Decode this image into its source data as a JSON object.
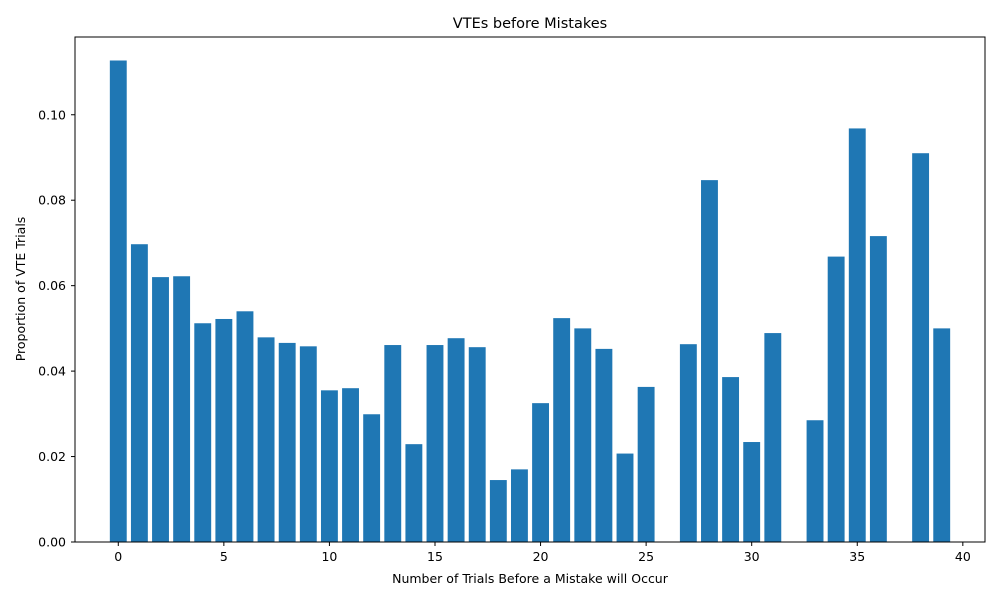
{
  "chart_data": {
    "type": "bar",
    "title": "VTEs before Mistakes",
    "xlabel": "Number of Trials Before a Mistake will Occur",
    "ylabel": "Proportion of VTE Trials",
    "xlim": [
      -2.05,
      41.05
    ],
    "ylim": [
      0,
      0.1182
    ],
    "xticks": [
      0,
      5,
      10,
      15,
      20,
      25,
      30,
      35,
      40
    ],
    "xtick_labels": [
      "0",
      "5",
      "10",
      "15",
      "20",
      "25",
      "30",
      "35",
      "40"
    ],
    "yticks": [
      0,
      0.02,
      0.04,
      0.06,
      0.08,
      0.1
    ],
    "ytick_labels": [
      "0.00",
      "0.02",
      "0.04",
      "0.06",
      "0.08",
      "0.10"
    ],
    "grid": false,
    "bar_color": "#1f77b4",
    "bars": [
      {
        "x": 0,
        "value": 0.1127
      },
      {
        "x": 1,
        "value": 0.0697
      },
      {
        "x": 2,
        "value": 0.062
      },
      {
        "x": 3,
        "value": 0.0622
      },
      {
        "x": 4,
        "value": 0.0512
      },
      {
        "x": 5,
        "value": 0.0522
      },
      {
        "x": 6,
        "value": 0.054
      },
      {
        "x": 7,
        "value": 0.0479
      },
      {
        "x": 8,
        "value": 0.0466
      },
      {
        "x": 9,
        "value": 0.0458
      },
      {
        "x": 10,
        "value": 0.0355
      },
      {
        "x": 11,
        "value": 0.036
      },
      {
        "x": 12,
        "value": 0.0299
      },
      {
        "x": 13,
        "value": 0.0461
      },
      {
        "x": 14,
        "value": 0.0229
      },
      {
        "x": 15,
        "value": 0.0461
      },
      {
        "x": 16,
        "value": 0.0477
      },
      {
        "x": 17,
        "value": 0.0456
      },
      {
        "x": 18,
        "value": 0.0145
      },
      {
        "x": 19,
        "value": 0.017
      },
      {
        "x": 20,
        "value": 0.0325
      },
      {
        "x": 21,
        "value": 0.0524
      },
      {
        "x": 22,
        "value": 0.05
      },
      {
        "x": 23,
        "value": 0.0452
      },
      {
        "x": 24,
        "value": 0.0207
      },
      {
        "x": 25,
        "value": 0.0363
      },
      {
        "x": 27,
        "value": 0.0463
      },
      {
        "x": 28,
        "value": 0.0847
      },
      {
        "x": 29,
        "value": 0.0386
      },
      {
        "x": 30,
        "value": 0.0234
      },
      {
        "x": 31,
        "value": 0.0489
      },
      {
        "x": 33,
        "value": 0.0285
      },
      {
        "x": 34,
        "value": 0.0668
      },
      {
        "x": 35,
        "value": 0.0968
      },
      {
        "x": 36,
        "value": 0.0716
      },
      {
        "x": 38,
        "value": 0.091
      },
      {
        "x": 39,
        "value": 0.05
      }
    ]
  }
}
